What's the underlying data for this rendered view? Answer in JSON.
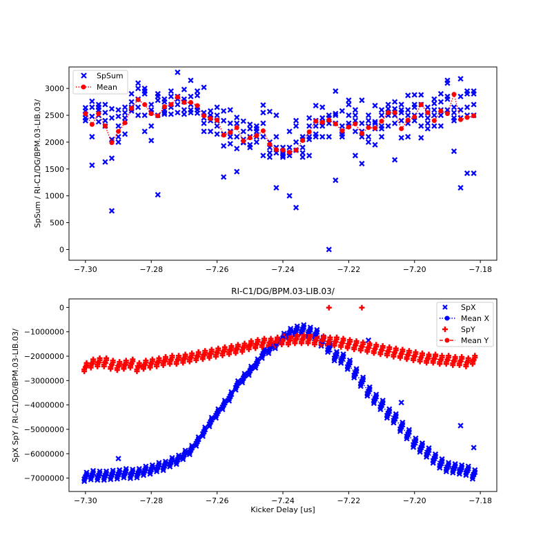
{
  "colors": {
    "blue": "#0000ff",
    "red": "#ff0000",
    "axis": "#000000",
    "background": "#ffffff"
  },
  "chart_data": [
    {
      "type": "scatter",
      "title": "",
      "xlabel": "",
      "ylabel": "SpSum / RI-C1/DG/BPM.03-LIB.03/",
      "xlim": [
        -7.305,
        -7.175
      ],
      "ylim": [
        -200,
        3400
      ],
      "xticks": [
        -7.3,
        -7.28,
        -7.26,
        -7.24,
        -7.22,
        -7.2,
        -7.18
      ],
      "xtick_labels": [
        "−7.30",
        "−7.28",
        "−7.26",
        "−7.24",
        "−7.22",
        "−7.20",
        "−7.18"
      ],
      "yticks": [
        0,
        500,
        1000,
        1500,
        2000,
        2500,
        3000
      ],
      "ytick_labels": [
        "0",
        "500",
        "1000",
        "1500",
        "2000",
        "2500",
        "3000"
      ],
      "legend_position": "top-left",
      "legend": [
        {
          "label": "SpSum",
          "color": "#0000ff",
          "marker": "x"
        },
        {
          "label": "Mean",
          "color": "#ff0000",
          "marker": "circle-dotted"
        }
      ],
      "mean": {
        "x": [
          -7.3,
          -7.298,
          -7.296,
          -7.294,
          -7.292,
          -7.29,
          -7.288,
          -7.286,
          -7.284,
          -7.282,
          -7.28,
          -7.278,
          -7.276,
          -7.274,
          -7.272,
          -7.27,
          -7.268,
          -7.266,
          -7.264,
          -7.262,
          -7.26,
          -7.258,
          -7.256,
          -7.254,
          -7.252,
          -7.25,
          -7.248,
          -7.246,
          -7.244,
          -7.242,
          -7.24,
          -7.238,
          -7.236,
          -7.234,
          -7.232,
          -7.23,
          -7.228,
          -7.226,
          -7.224,
          -7.222,
          -7.22,
          -7.218,
          -7.216,
          -7.214,
          -7.212,
          -7.21,
          -7.208,
          -7.206,
          -7.204,
          -7.202,
          -7.2,
          -7.198,
          -7.196,
          -7.194,
          -7.192,
          -7.19,
          -7.188,
          -7.186,
          -7.184,
          -7.182
        ],
        "y": [
          2530,
          2330,
          2530,
          2300,
          1990,
          2200,
          2360,
          2630,
          2790,
          2700,
          2530,
          2490,
          2660,
          2700,
          2840,
          2740,
          2740,
          2680,
          2490,
          2440,
          2410,
          2130,
          2180,
          2270,
          2020,
          2080,
          2120,
          2210,
          1960,
          1860,
          1850,
          1810,
          1850,
          2030,
          2190,
          2390,
          2370,
          2410,
          2340,
          2210,
          2280,
          2340,
          2160,
          2270,
          2260,
          2390,
          2550,
          2550,
          2250,
          2410,
          2470,
          2700,
          2550,
          2400,
          2580,
          2530,
          2890,
          2420,
          2460,
          2490
        ]
      },
      "points": {
        "x": [
          -7.3,
          -7.3,
          -7.3,
          -7.3,
          -7.3,
          -7.298,
          -7.298,
          -7.298,
          -7.298,
          -7.298,
          -7.296,
          -7.296,
          -7.296,
          -7.296,
          -7.296,
          -7.294,
          -7.294,
          -7.294,
          -7.294,
          -7.294,
          -7.292,
          -7.292,
          -7.292,
          -7.292,
          -7.292,
          -7.29,
          -7.29,
          -7.29,
          -7.29,
          -7.29,
          -7.288,
          -7.288,
          -7.288,
          -7.288,
          -7.288,
          -7.286,
          -7.286,
          -7.286,
          -7.286,
          -7.286,
          -7.284,
          -7.284,
          -7.284,
          -7.284,
          -7.284,
          -7.282,
          -7.282,
          -7.282,
          -7.282,
          -7.282,
          -7.28,
          -7.28,
          -7.28,
          -7.28,
          -7.28,
          -7.278,
          -7.278,
          -7.278,
          -7.278,
          -7.278,
          -7.276,
          -7.276,
          -7.276,
          -7.276,
          -7.276,
          -7.274,
          -7.274,
          -7.274,
          -7.274,
          -7.274,
          -7.272,
          -7.272,
          -7.272,
          -7.272,
          -7.272,
          -7.27,
          -7.27,
          -7.27,
          -7.27,
          -7.27,
          -7.268,
          -7.268,
          -7.268,
          -7.268,
          -7.268,
          -7.266,
          -7.266,
          -7.266,
          -7.266,
          -7.266,
          -7.264,
          -7.264,
          -7.264,
          -7.264,
          -7.264,
          -7.262,
          -7.262,
          -7.262,
          -7.262,
          -7.262,
          -7.26,
          -7.26,
          -7.26,
          -7.26,
          -7.26,
          -7.258,
          -7.258,
          -7.258,
          -7.258,
          -7.258,
          -7.256,
          -7.256,
          -7.256,
          -7.256,
          -7.256,
          -7.254,
          -7.254,
          -7.254,
          -7.254,
          -7.254,
          -7.252,
          -7.252,
          -7.252,
          -7.252,
          -7.252,
          -7.25,
          -7.25,
          -7.25,
          -7.25,
          -7.25,
          -7.248,
          -7.248,
          -7.248,
          -7.248,
          -7.248,
          -7.246,
          -7.246,
          -7.246,
          -7.246,
          -7.246,
          -7.244,
          -7.244,
          -7.244,
          -7.244,
          -7.244,
          -7.242,
          -7.242,
          -7.242,
          -7.242,
          -7.242,
          -7.24,
          -7.24,
          -7.24,
          -7.24,
          -7.24,
          -7.238,
          -7.238,
          -7.238,
          -7.238,
          -7.238,
          -7.236,
          -7.236,
          -7.236,
          -7.236,
          -7.236,
          -7.234,
          -7.234,
          -7.234,
          -7.234,
          -7.234,
          -7.232,
          -7.232,
          -7.232,
          -7.232,
          -7.232,
          -7.23,
          -7.23,
          -7.23,
          -7.23,
          -7.23,
          -7.228,
          -7.228,
          -7.228,
          -7.228,
          -7.228,
          -7.226,
          -7.226,
          -7.226,
          -7.226,
          -7.226,
          -7.224,
          -7.224,
          -7.224,
          -7.224,
          -7.224,
          -7.222,
          -7.222,
          -7.222,
          -7.222,
          -7.222,
          -7.22,
          -7.22,
          -7.22,
          -7.22,
          -7.22,
          -7.218,
          -7.218,
          -7.218,
          -7.218,
          -7.218,
          -7.216,
          -7.216,
          -7.216,
          -7.216,
          -7.216,
          -7.214,
          -7.214,
          -7.214,
          -7.214,
          -7.214,
          -7.212,
          -7.212,
          -7.212,
          -7.212,
          -7.212,
          -7.21,
          -7.21,
          -7.21,
          -7.21,
          -7.21,
          -7.208,
          -7.208,
          -7.208,
          -7.208,
          -7.208,
          -7.206,
          -7.206,
          -7.206,
          -7.206,
          -7.206,
          -7.204,
          -7.204,
          -7.204,
          -7.204,
          -7.204,
          -7.202,
          -7.202,
          -7.202,
          -7.202,
          -7.202,
          -7.2,
          -7.2,
          -7.2,
          -7.2,
          -7.2,
          -7.198,
          -7.198,
          -7.198,
          -7.198,
          -7.198,
          -7.196,
          -7.196,
          -7.196,
          -7.196,
          -7.196,
          -7.194,
          -7.194,
          -7.194,
          -7.194,
          -7.194,
          -7.192,
          -7.192,
          -7.192,
          -7.192,
          -7.192,
          -7.19,
          -7.19,
          -7.19,
          -7.19,
          -7.19,
          -7.188,
          -7.188,
          -7.188,
          -7.188,
          -7.188,
          -7.186,
          -7.186,
          -7.186,
          -7.186,
          -7.186,
          -7.184,
          -7.184,
          -7.184,
          -7.184,
          -7.184,
          -7.182,
          -7.182,
          -7.182,
          -7.182,
          -7.182
        ],
        "y": [
          2640,
          2580,
          2520,
          2450,
          2400,
          2760,
          2650,
          2100,
          1570,
          2480,
          2700,
          2600,
          2500,
          2380,
          2650,
          2700,
          2550,
          2400,
          2300,
          1630,
          2620,
          2450,
          1700,
          720,
          2050,
          2600,
          2480,
          2300,
          2100,
          2000,
          2650,
          2550,
          2450,
          2380,
          2150,
          2900,
          2750,
          2650,
          2620,
          2580,
          3100,
          3000,
          2800,
          2650,
          2500,
          3000,
          2950,
          2900,
          2500,
          2200,
          2700,
          2600,
          2550,
          2300,
          2030,
          2900,
          2850,
          2780,
          2500,
          1020,
          2800,
          2750,
          2600,
          2550,
          2520,
          2950,
          2850,
          2700,
          2650,
          2520,
          3300,
          2850,
          2800,
          2700,
          2550,
          2980,
          2800,
          2750,
          2600,
          2520,
          3150,
          2850,
          2700,
          2600,
          2550,
          2950,
          2870,
          2650,
          2600,
          2540,
          3020,
          2550,
          2450,
          2350,
          2200,
          2580,
          2500,
          2450,
          2400,
          2200,
          2650,
          2500,
          2400,
          2300,
          2150,
          2580,
          2400,
          2150,
          1930,
          1350,
          2600,
          2350,
          2200,
          2100,
          1970,
          2460,
          2350,
          2100,
          1880,
          1450,
          2390,
          2200,
          2050,
          2000,
          1990,
          2330,
          2250,
          2100,
          1950,
          1900,
          2300,
          2250,
          2200,
          2100,
          2000,
          2690,
          2550,
          2350,
          2100,
          1750,
          2570,
          2000,
          1900,
          1800,
          1720,
          2500,
          2100,
          1900,
          1800,
          1150,
          1900,
          1800,
          1750,
          1780,
          1720,
          2200,
          1900,
          1800,
          1750,
          1000,
          2400,
          2300,
          2000,
          1850,
          780,
          2100,
          2050,
          1900,
          1800,
          1720,
          2450,
          2300,
          2100,
          2050,
          1750,
          2680,
          2400,
          2300,
          2150,
          2100,
          2650,
          2450,
          2380,
          2300,
          2100,
          2500,
          2450,
          2350,
          2100,
          0,
          2950,
          2530,
          2500,
          2350,
          1290,
          2580,
          2300,
          2200,
          2150,
          2100,
          2780,
          2700,
          2500,
          2350,
          2300,
          2600,
          2500,
          2400,
          2200,
          1750,
          2780,
          2350,
          2200,
          2100,
          1600,
          2500,
          2400,
          2300,
          2100,
          2000,
          2680,
          2380,
          2350,
          2250,
          1950,
          2600,
          2500,
          2300,
          2250,
          2100,
          2700,
          2620,
          2550,
          2500,
          2300,
          2750,
          2620,
          2500,
          2350,
          1670,
          2700,
          2600,
          2550,
          2400,
          2080,
          2870,
          2600,
          2500,
          2350,
          2100,
          2880,
          2700,
          2650,
          2500,
          2400,
          2880,
          2700,
          2500,
          2300,
          2080,
          2650,
          2550,
          2450,
          2350,
          2250,
          2800,
          2720,
          2600,
          2500,
          2300,
          2900,
          2750,
          2600,
          2500,
          2300,
          3150,
          3100,
          2850,
          2800,
          2600,
          2650,
          2550,
          2450,
          2400,
          1830,
          3180,
          2850,
          2600,
          2450,
          1150,
          2950,
          2900,
          2650,
          2500,
          1420,
          2950,
          2900,
          2700,
          2500,
          1420
        ]
      }
    },
    {
      "type": "scatter",
      "title": "RI-C1/DG/BPM.03-LIB.03/",
      "xlabel": "Kicker Delay [us]",
      "ylabel": "SpX SpY / RI-C1/DG/BPM.03-LIB.03/",
      "xlim": [
        -7.305,
        -7.175
      ],
      "ylim": [
        -7550000,
        350000
      ],
      "xticks": [
        -7.3,
        -7.28,
        -7.26,
        -7.24,
        -7.22,
        -7.2,
        -7.18
      ],
      "xtick_labels": [
        "−7.30",
        "−7.28",
        "−7.26",
        "−7.24",
        "−7.22",
        "−7.20",
        "−7.18"
      ],
      "yticks": [
        0,
        -1000000,
        -2000000,
        -3000000,
        -4000000,
        -5000000,
        -6000000,
        -7000000
      ],
      "ytick_labels": [
        "0",
        "−1000000",
        "−2000000",
        "−3000000",
        "−4000000",
        "−5000000",
        "−6000000",
        "−7000000"
      ],
      "legend_position": "top-right",
      "legend": [
        {
          "label": "SpX",
          "color": "#0000ff",
          "marker": "x"
        },
        {
          "label": "Mean X",
          "color": "#0000ff",
          "marker": "circle-dotted"
        },
        {
          "label": "SpY",
          "color": "#ff0000",
          "marker": "plus"
        },
        {
          "label": "Mean Y",
          "color": "#ff0000",
          "marker": "circle-dashed"
        }
      ],
      "x": [
        -7.3,
        -7.298,
        -7.296,
        -7.294,
        -7.292,
        -7.29,
        -7.288,
        -7.286,
        -7.284,
        -7.282,
        -7.28,
        -7.278,
        -7.276,
        -7.274,
        -7.272,
        -7.27,
        -7.268,
        -7.266,
        -7.264,
        -7.262,
        -7.26,
        -7.258,
        -7.256,
        -7.254,
        -7.252,
        -7.25,
        -7.248,
        -7.246,
        -7.244,
        -7.242,
        -7.24,
        -7.238,
        -7.236,
        -7.234,
        -7.232,
        -7.23,
        -7.228,
        -7.226,
        -7.224,
        -7.222,
        -7.22,
        -7.218,
        -7.216,
        -7.214,
        -7.212,
        -7.21,
        -7.208,
        -7.206,
        -7.204,
        -7.202,
        -7.2,
        -7.198,
        -7.196,
        -7.194,
        -7.192,
        -7.19,
        -7.188,
        -7.186,
        -7.184,
        -7.182
      ],
      "mean_x": [
        -6950000,
        -6880000,
        -6900000,
        -6900000,
        -6870000,
        -6850000,
        -6800000,
        -6830000,
        -6800000,
        -6700000,
        -6650000,
        -6550000,
        -6500000,
        -6350000,
        -6250000,
        -6050000,
        -5850000,
        -5500000,
        -5100000,
        -4700000,
        -4350000,
        -4000000,
        -3650000,
        -3200000,
        -2900000,
        -2600000,
        -2300000,
        -1900000,
        -1700000,
        -1500000,
        -1250000,
        -1050000,
        -950000,
        -900000,
        -1000000,
        -1100000,
        -1400000,
        -1650000,
        -2000000,
        -2100000,
        -2350000,
        -2700000,
        -3050000,
        -3450000,
        -3750000,
        -4000000,
        -4350000,
        -4550000,
        -4900000,
        -5200000,
        -5550000,
        -5750000,
        -5950000,
        -6200000,
        -6400000,
        -6550000,
        -6600000,
        -6650000,
        -6700000,
        -6850000
      ],
      "mean_y": [
        -2450000,
        -2300000,
        -2250000,
        -2250000,
        -2350000,
        -2400000,
        -2350000,
        -2300000,
        -2450000,
        -2350000,
        -2300000,
        -2250000,
        -2200000,
        -2150000,
        -2150000,
        -2100000,
        -2050000,
        -2000000,
        -1950000,
        -1900000,
        -1850000,
        -1800000,
        -1750000,
        -1700000,
        -1650000,
        -1550000,
        -1500000,
        -1450000,
        -1450000,
        -1400000,
        -1350000,
        -1350000,
        -1300000,
        -1300000,
        -1300000,
        -1350000,
        -1350000,
        -1400000,
        -1400000,
        -1450000,
        -1500000,
        -1550000,
        -1600000,
        -1650000,
        -1700000,
        -1750000,
        -1800000,
        -1850000,
        -1900000,
        -1950000,
        -2000000,
        -2050000,
        -2100000,
        -2100000,
        -2150000,
        -2150000,
        -2200000,
        -2200000,
        -2250000,
        -2150000
      ],
      "outliers_x": {
        "x": [
          -7.29,
          -7.226,
          -7.214,
          -7.186,
          -7.182,
          -7.204
        ],
        "y": [
          -6200000,
          -1750000,
          -1350000,
          -4850000,
          -5750000,
          -3900000
        ]
      },
      "outliers_y": {
        "x": [
          -7.226,
          -7.216
        ],
        "y": [
          -10000,
          -10000
        ]
      }
    }
  ]
}
